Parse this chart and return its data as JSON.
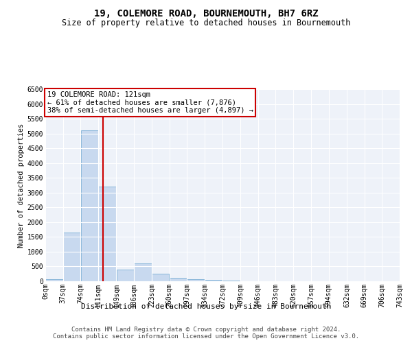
{
  "title": "19, COLEMORE ROAD, BOURNEMOUTH, BH7 6RZ",
  "subtitle": "Size of property relative to detached houses in Bournemouth",
  "xlabel": "Distribution of detached houses by size in Bournemouth",
  "ylabel": "Number of detached properties",
  "footer_line1": "Contains HM Land Registry data © Crown copyright and database right 2024.",
  "footer_line2": "Contains public sector information licensed under the Open Government Licence v3.0.",
  "bar_color": "#c8d9ef",
  "bar_edgecolor": "#7aadd4",
  "background_color": "#eef2f9",
  "grid_color": "#ffffff",
  "annotation_text": "19 COLEMORE ROAD: 121sqm\n← 61% of detached houses are smaller (7,876)\n38% of semi-detached houses are larger (4,897) →",
  "vline_x": 121,
  "vline_color": "#cc0000",
  "annotation_box_color": "#cc0000",
  "bin_edges": [
    0,
    37,
    74,
    111,
    149,
    186,
    223,
    260,
    297,
    334,
    372,
    409,
    446,
    483,
    520,
    557,
    594,
    632,
    669,
    706,
    743
  ],
  "bar_heights": [
    75,
    1650,
    5100,
    3200,
    400,
    600,
    250,
    125,
    75,
    40,
    20,
    8,
    0,
    0,
    0,
    0,
    0,
    0,
    0,
    0
  ],
  "ylim": [
    0,
    6500
  ],
  "yticks": [
    0,
    500,
    1000,
    1500,
    2000,
    2500,
    3000,
    3500,
    4000,
    4500,
    5000,
    5500,
    6000,
    6500
  ],
  "title_fontsize": 10,
  "subtitle_fontsize": 8.5,
  "xlabel_fontsize": 8,
  "ylabel_fontsize": 7.5,
  "tick_fontsize": 7,
  "annot_fontsize": 7.5,
  "footer_fontsize": 6.5
}
